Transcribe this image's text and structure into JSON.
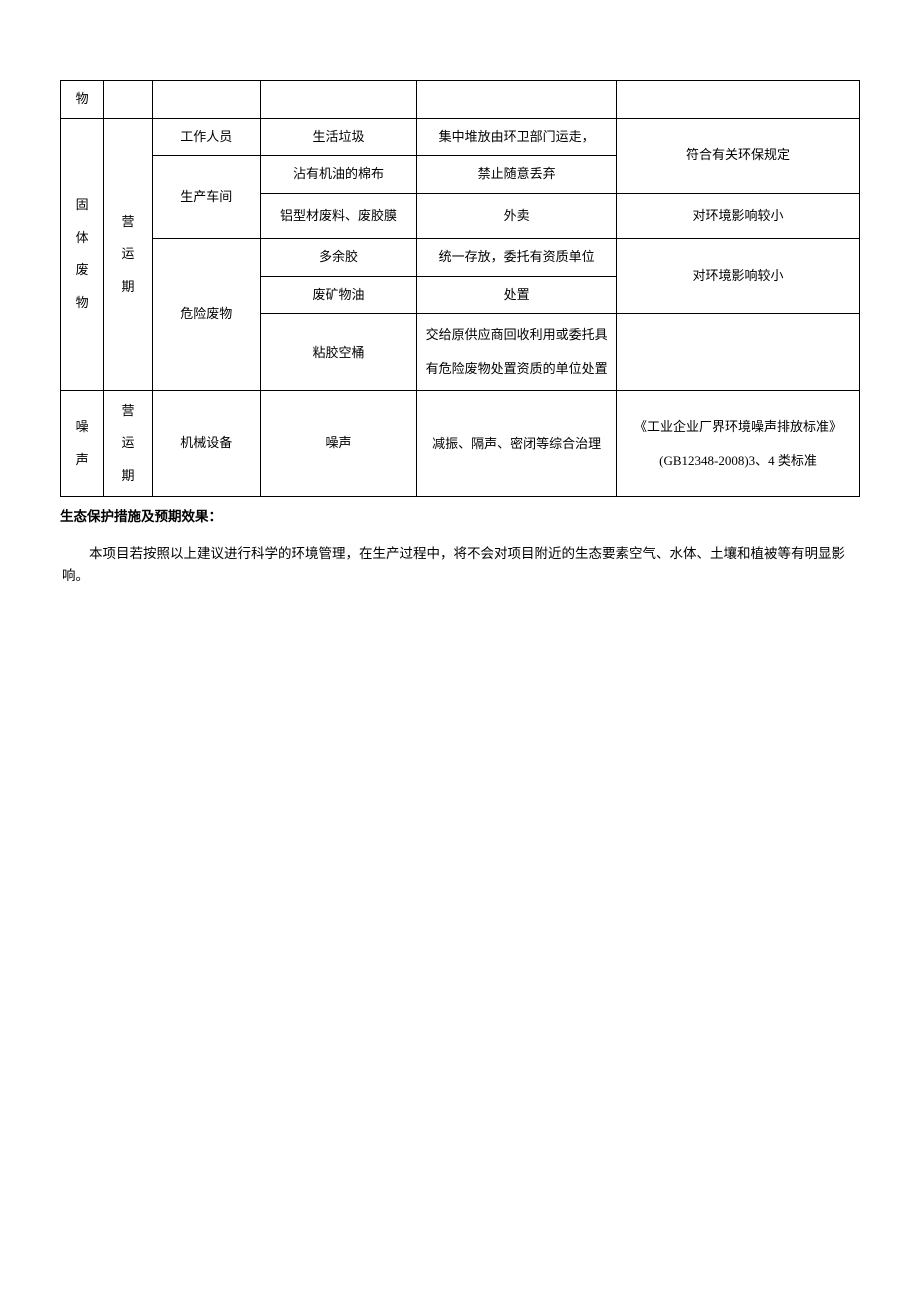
{
  "table": {
    "row0": {
      "c0": "物"
    },
    "solidWaste": {
      "cat": [
        "固",
        "体",
        "废",
        "物"
      ],
      "period": [
        "营",
        "运",
        "期"
      ],
      "r1": {
        "source": "工作人员",
        "pollutant": "生活垃圾",
        "measure": "集中堆放由环卫部门运走，",
        "std": "符合有关环保规定"
      },
      "r2": {
        "pollutant": "沾有机油的棉布",
        "measure": "禁止随意丢弃"
      },
      "r3": {
        "source": "生产车间",
        "pollutant": "铝型材废料、废胶膜",
        "measure": "外卖",
        "std": "对环境影响较小"
      },
      "r4": {
        "source": "危险废物",
        "pollutant": "多余胶",
        "measure": "统一存放，委托有资质单位",
        "std": "对环境影响较小"
      },
      "r5": {
        "pollutant": "废矿物油",
        "measure": "处置"
      },
      "r6": {
        "pollutant": "粘胶空桶",
        "measure": "交给原供应商回收利用或委托具有危险废物处置资质的单位处置"
      }
    },
    "noise": {
      "cat": [
        "噪",
        "声"
      ],
      "period": [
        "营",
        "运",
        "期"
      ],
      "source": "机械设备",
      "pollutant": "噪声",
      "measure": "减振、隔声、密闭等综合治理",
      "std": "《工业企业厂界环境噪声排放标准》(GB12348-2008)3、4 类标准"
    }
  },
  "sectionTitle": "生态保护措施及预期效果：",
  "bodyText": "本项目若按照以上建议进行科学的环境管理，在生产过程中，将不会对项目附近的生态要素空气、水体、土壤和植被等有明显影响。"
}
